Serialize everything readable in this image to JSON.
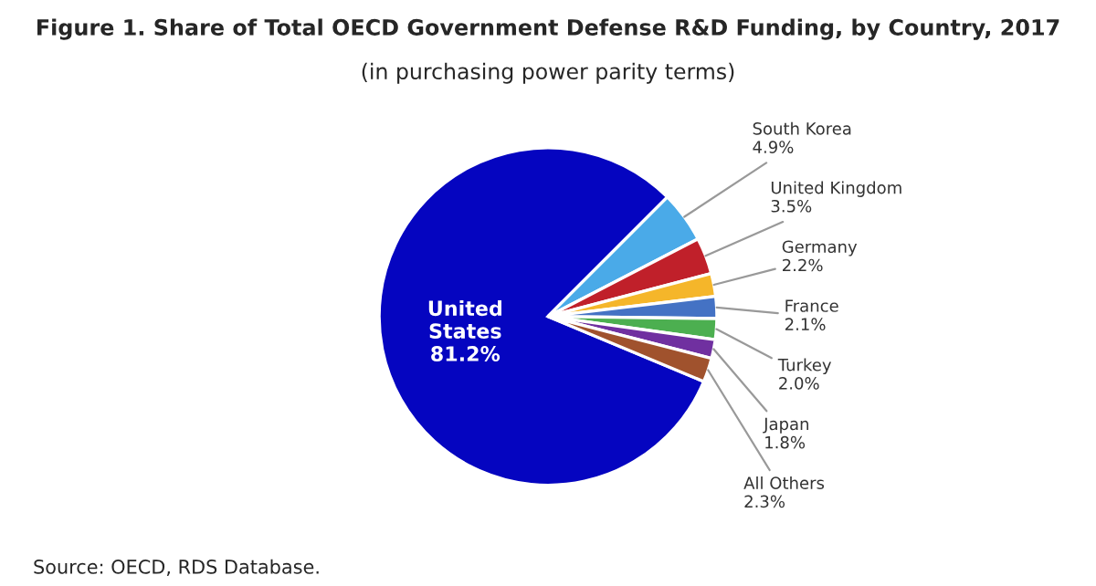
{
  "chart_data": {
    "type": "pie",
    "title": "Figure 1. Share of Total OECD Government Defense R&D Funding, by Country, 2017",
    "subtitle": "(in purchasing power parity terms)",
    "categories": [
      "United States",
      "South Korea",
      "United Kingdom",
      "Germany",
      "France",
      "Turkey",
      "Japan",
      "All Others"
    ],
    "values": [
      81.2,
      4.9,
      3.5,
      2.2,
      2.1,
      2.0,
      1.8,
      2.3
    ],
    "value_labels": [
      "81.2%",
      "4.9%",
      "3.5%",
      "2.2%",
      "2.1%",
      "2.0%",
      "1.8%",
      "2.3%"
    ],
    "colors": [
      "#0505c0",
      "#4aaae8",
      "#c0202a",
      "#f5b62a",
      "#4472c4",
      "#4caf50",
      "#7030a0",
      "#a0522d"
    ],
    "annotations": [
      "Source: OECD, RDS Database."
    ]
  }
}
